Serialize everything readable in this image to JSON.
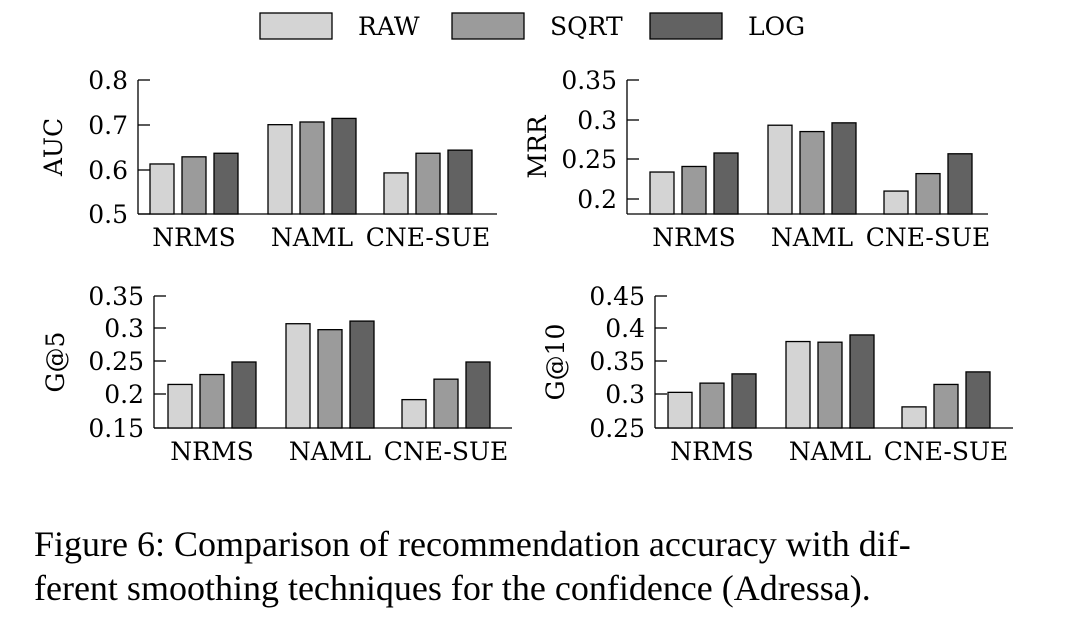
{
  "legend": [
    "RAW",
    "SQRT",
    "LOG"
  ],
  "colors": {
    "RAW": "#d4d4d4",
    "SQRT": "#9b9b9b",
    "LOG": "#626262"
  },
  "caption": {
    "line1": "Figure 6: Comparison of recommendation accuracy with dif-",
    "line2": "ferent smoothing techniques for the confidence (Adressa)."
  },
  "chart_data": [
    {
      "type": "bar",
      "ylabel": "AUC",
      "categories": [
        "NRMS",
        "NAML",
        "CNE-SUE"
      ],
      "ylim": [
        0.5,
        0.8
      ],
      "yticks": [
        "0.5",
        "0.6",
        "0.7",
        "0.8"
      ],
      "series": [
        {
          "name": "RAW",
          "values": [
            0.612,
            0.7,
            0.592
          ]
        },
        {
          "name": "SQRT",
          "values": [
            0.628,
            0.706,
            0.636
          ]
        },
        {
          "name": "LOG",
          "values": [
            0.636,
            0.714,
            0.643
          ]
        }
      ]
    },
    {
      "type": "bar",
      "ylabel": "MRR",
      "categories": [
        "NRMS",
        "NAML",
        "CNE-SUE"
      ],
      "ylim": [
        0.18,
        0.35
      ],
      "yticks": [
        "0.2",
        "0.25",
        "0.3",
        "0.35"
      ],
      "series": [
        {
          "name": "RAW",
          "values": [
            0.234,
            0.293,
            0.21
          ]
        },
        {
          "name": "SQRT",
          "values": [
            0.241,
            0.285,
            0.232
          ]
        },
        {
          "name": "LOG",
          "values": [
            0.258,
            0.296,
            0.257
          ]
        }
      ]
    },
    {
      "type": "bar",
      "ylabel": "G@5",
      "categories": [
        "NRMS",
        "NAML",
        "CNE-SUE"
      ],
      "ylim": [
        0.15,
        0.35
      ],
      "yticks": [
        "0.15",
        "0.2",
        "0.25",
        "0.3",
        "0.35"
      ],
      "series": [
        {
          "name": "RAW",
          "values": [
            0.216,
            0.308,
            0.193
          ]
        },
        {
          "name": "SQRT",
          "values": [
            0.231,
            0.299,
            0.224
          ]
        },
        {
          "name": "LOG",
          "values": [
            0.25,
            0.312,
            0.25
          ]
        }
      ]
    },
    {
      "type": "bar",
      "ylabel": "G@10",
      "categories": [
        "NRMS",
        "NAML",
        "CNE-SUE"
      ],
      "ylim": [
        0.25,
        0.45
      ],
      "yticks": [
        "0.25",
        "0.3",
        "0.35",
        "0.4",
        "0.45"
      ],
      "series": [
        {
          "name": "RAW",
          "values": [
            0.304,
            0.381,
            0.282
          ]
        },
        {
          "name": "SQRT",
          "values": [
            0.318,
            0.38,
            0.316
          ]
        },
        {
          "name": "LOG",
          "values": [
            0.332,
            0.391,
            0.335
          ]
        }
      ]
    }
  ]
}
